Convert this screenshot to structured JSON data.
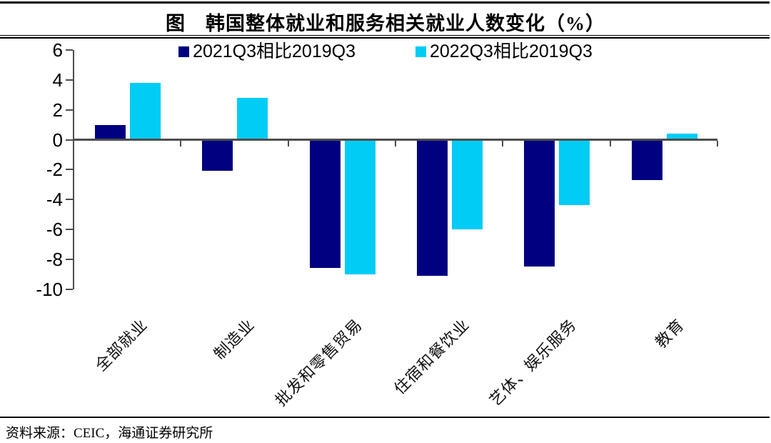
{
  "header": {
    "title": "图　韩国整体就业和服务相关就业人数变化（%）"
  },
  "chart_data": {
    "type": "bar",
    "title": "图　韩国整体就业和服务相关就业人数变化（%）",
    "categories": [
      "全部就业",
      "制造业",
      "批发和零售贸易",
      "住宿和餐饮业",
      "艺体、娱乐服务",
      "教育"
    ],
    "series": [
      {
        "name": "2021Q3相比2019Q3",
        "color": "#000080",
        "values": [
          1.0,
          -2.1,
          -8.6,
          -9.1,
          -8.5,
          -2.7
        ]
      },
      {
        "name": "2022Q3相比2019Q3",
        "color": "#00CCF5",
        "values": [
          3.8,
          2.8,
          -9.0,
          -6.0,
          -4.4,
          0.4
        ]
      }
    ],
    "xlabel": "",
    "ylabel": "",
    "ylim": [
      -10,
      6
    ],
    "yticks": [
      6,
      4,
      2,
      0,
      -2,
      -4,
      -6,
      -8,
      -10
    ],
    "grid": false,
    "legend_position": "top-center"
  },
  "footer": {
    "source_label": "资料来源：CEIC，海通证券研究所"
  },
  "colors": {
    "navy": "#000080",
    "cyan": "#00CCF5",
    "axis": "#4d4d4d",
    "rule": "#000000"
  }
}
